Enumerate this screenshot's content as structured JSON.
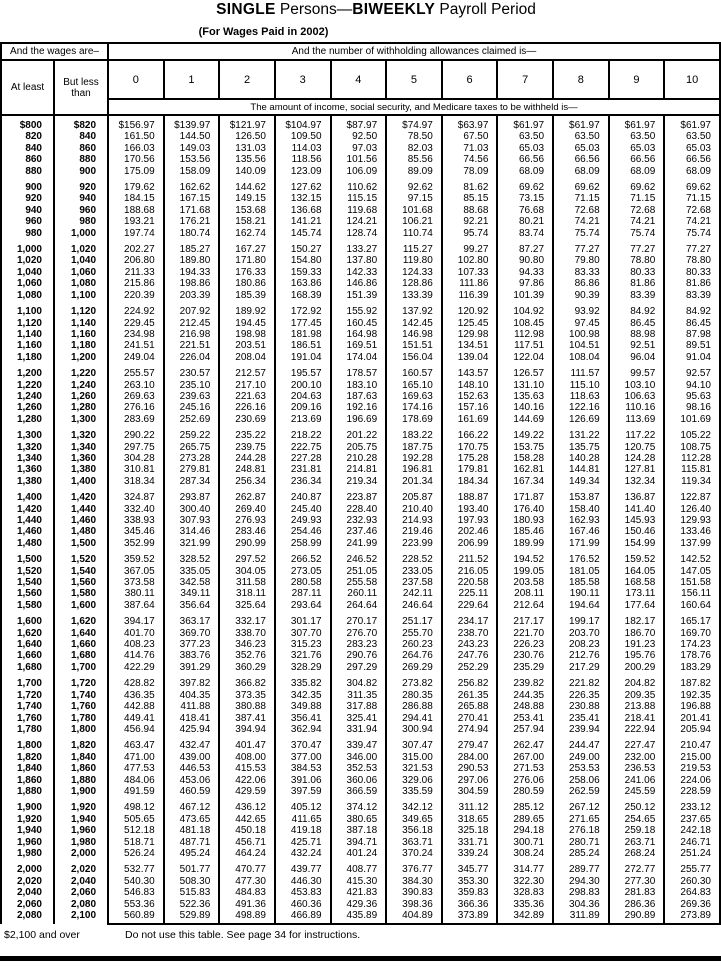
{
  "title": {
    "single": "SINGLE",
    "mid": " Persons—",
    "biweekly": "BIWEEKLY",
    "tail": " Payroll Period"
  },
  "subtitle": "(For Wages Paid in 2002)",
  "header": {
    "wages_label": "And the wages are–",
    "allowances_label": "And the number of withholding allowances claimed is—",
    "at_least": "At least",
    "but_less": "But less\nthan",
    "allowance_columns": [
      "0",
      "1",
      "2",
      "3",
      "4",
      "5",
      "6",
      "7",
      "8",
      "9",
      "10"
    ],
    "amount_label": "The amount of income, social security, and Medicare taxes to be withheld is—"
  },
  "footer": {
    "over_label": "$2,100 and over",
    "instruction": "Do not use this table. See page 34 for instructions."
  },
  "table": {
    "groups": [
      [
        [
          "$800",
          "$820",
          "$156.97",
          "$139.97",
          "$121.97",
          "$104.97",
          "$87.97",
          "$74.97",
          "$63.97",
          "$61.97",
          "$61.97",
          "$61.97",
          "$61.97"
        ],
        [
          "820",
          "840",
          "161.50",
          "144.50",
          "126.50",
          "109.50",
          "92.50",
          "78.50",
          "67.50",
          "63.50",
          "63.50",
          "63.50",
          "63.50"
        ],
        [
          "840",
          "860",
          "166.03",
          "149.03",
          "131.03",
          "114.03",
          "97.03",
          "82.03",
          "71.03",
          "65.03",
          "65.03",
          "65.03",
          "65.03"
        ],
        [
          "860",
          "880",
          "170.56",
          "153.56",
          "135.56",
          "118.56",
          "101.56",
          "85.56",
          "74.56",
          "66.56",
          "66.56",
          "66.56",
          "66.56"
        ],
        [
          "880",
          "900",
          "175.09",
          "158.09",
          "140.09",
          "123.09",
          "106.09",
          "89.09",
          "78.09",
          "68.09",
          "68.09",
          "68.09",
          "68.09"
        ]
      ],
      [
        [
          "900",
          "920",
          "179.62",
          "162.62",
          "144.62",
          "127.62",
          "110.62",
          "92.62",
          "81.62",
          "69.62",
          "69.62",
          "69.62",
          "69.62"
        ],
        [
          "920",
          "940",
          "184.15",
          "167.15",
          "149.15",
          "132.15",
          "115.15",
          "97.15",
          "85.15",
          "73.15",
          "71.15",
          "71.15",
          "71.15"
        ],
        [
          "940",
          "960",
          "188.68",
          "171.68",
          "153.68",
          "136.68",
          "119.68",
          "101.68",
          "88.68",
          "76.68",
          "72.68",
          "72.68",
          "72.68"
        ],
        [
          "960",
          "980",
          "193.21",
          "176.21",
          "158.21",
          "141.21",
          "124.21",
          "106.21",
          "92.21",
          "80.21",
          "74.21",
          "74.21",
          "74.21"
        ],
        [
          "980",
          "1,000",
          "197.74",
          "180.74",
          "162.74",
          "145.74",
          "128.74",
          "110.74",
          "95.74",
          "83.74",
          "75.74",
          "75.74",
          "75.74"
        ]
      ],
      [
        [
          "1,000",
          "1,020",
          "202.27",
          "185.27",
          "167.27",
          "150.27",
          "133.27",
          "115.27",
          "99.27",
          "87.27",
          "77.27",
          "77.27",
          "77.27"
        ],
        [
          "1,020",
          "1,040",
          "206.80",
          "189.80",
          "171.80",
          "154.80",
          "137.80",
          "119.80",
          "102.80",
          "90.80",
          "79.80",
          "78.80",
          "78.80"
        ],
        [
          "1,040",
          "1,060",
          "211.33",
          "194.33",
          "176.33",
          "159.33",
          "142.33",
          "124.33",
          "107.33",
          "94.33",
          "83.33",
          "80.33",
          "80.33"
        ],
        [
          "1,060",
          "1,080",
          "215.86",
          "198.86",
          "180.86",
          "163.86",
          "146.86",
          "128.86",
          "111.86",
          "97.86",
          "86.86",
          "81.86",
          "81.86"
        ],
        [
          "1,080",
          "1,100",
          "220.39",
          "203.39",
          "185.39",
          "168.39",
          "151.39",
          "133.39",
          "116.39",
          "101.39",
          "90.39",
          "83.39",
          "83.39"
        ]
      ],
      [
        [
          "1,100",
          "1,120",
          "224.92",
          "207.92",
          "189.92",
          "172.92",
          "155.92",
          "137.92",
          "120.92",
          "104.92",
          "93.92",
          "84.92",
          "84.92"
        ],
        [
          "1,120",
          "1,140",
          "229.45",
          "212.45",
          "194.45",
          "177.45",
          "160.45",
          "142.45",
          "125.45",
          "108.45",
          "97.45",
          "86.45",
          "86.45"
        ],
        [
          "1,140",
          "1,160",
          "234.98",
          "216.98",
          "198.98",
          "181.98",
          "164.98",
          "146.98",
          "129.98",
          "112.98",
          "100.98",
          "88.98",
          "87.98"
        ],
        [
          "1,160",
          "1,180",
          "241.51",
          "221.51",
          "203.51",
          "186.51",
          "169.51",
          "151.51",
          "134.51",
          "117.51",
          "104.51",
          "92.51",
          "89.51"
        ],
        [
          "1,180",
          "1,200",
          "249.04",
          "226.04",
          "208.04",
          "191.04",
          "174.04",
          "156.04",
          "139.04",
          "122.04",
          "108.04",
          "96.04",
          "91.04"
        ]
      ],
      [
        [
          "1,200",
          "1,220",
          "255.57",
          "230.57",
          "212.57",
          "195.57",
          "178.57",
          "160.57",
          "143.57",
          "126.57",
          "111.57",
          "99.57",
          "92.57"
        ],
        [
          "1,220",
          "1,240",
          "263.10",
          "235.10",
          "217.10",
          "200.10",
          "183.10",
          "165.10",
          "148.10",
          "131.10",
          "115.10",
          "103.10",
          "94.10"
        ],
        [
          "1,240",
          "1,260",
          "269.63",
          "239.63",
          "221.63",
          "204.63",
          "187.63",
          "169.63",
          "152.63",
          "135.63",
          "118.63",
          "106.63",
          "95.63"
        ],
        [
          "1,260",
          "1,280",
          "276.16",
          "245.16",
          "226.16",
          "209.16",
          "192.16",
          "174.16",
          "157.16",
          "140.16",
          "122.16",
          "110.16",
          "98.16"
        ],
        [
          "1,280",
          "1,300",
          "283.69",
          "252.69",
          "230.69",
          "213.69",
          "196.69",
          "178.69",
          "161.69",
          "144.69",
          "126.69",
          "113.69",
          "101.69"
        ]
      ],
      [
        [
          "1,300",
          "1,320",
          "290.22",
          "259.22",
          "235.22",
          "218.22",
          "201.22",
          "183.22",
          "166.22",
          "149.22",
          "131.22",
          "117.22",
          "105.22"
        ],
        [
          "1,320",
          "1,340",
          "297.75",
          "265.75",
          "239.75",
          "222.75",
          "205.75",
          "187.75",
          "170.75",
          "153.75",
          "135.75",
          "120.75",
          "108.75"
        ],
        [
          "1,340",
          "1,360",
          "304.28",
          "273.28",
          "244.28",
          "227.28",
          "210.28",
          "192.28",
          "175.28",
          "158.28",
          "140.28",
          "124.28",
          "112.28"
        ],
        [
          "1,360",
          "1,380",
          "310.81",
          "279.81",
          "248.81",
          "231.81",
          "214.81",
          "196.81",
          "179.81",
          "162.81",
          "144.81",
          "127.81",
          "115.81"
        ],
        [
          "1,380",
          "1,400",
          "318.34",
          "287.34",
          "256.34",
          "236.34",
          "219.34",
          "201.34",
          "184.34",
          "167.34",
          "149.34",
          "132.34",
          "119.34"
        ]
      ],
      [
        [
          "1,400",
          "1,420",
          "324.87",
          "293.87",
          "262.87",
          "240.87",
          "223.87",
          "205.87",
          "188.87",
          "171.87",
          "153.87",
          "136.87",
          "122.87"
        ],
        [
          "1,420",
          "1,440",
          "332.40",
          "300.40",
          "269.40",
          "245.40",
          "228.40",
          "210.40",
          "193.40",
          "176.40",
          "158.40",
          "141.40",
          "126.40"
        ],
        [
          "1,440",
          "1,460",
          "338.93",
          "307.93",
          "276.93",
          "249.93",
          "232.93",
          "214.93",
          "197.93",
          "180.93",
          "162.93",
          "145.93",
          "129.93"
        ],
        [
          "1,460",
          "1,480",
          "345.46",
          "314.46",
          "283.46",
          "254.46",
          "237.46",
          "219.46",
          "202.46",
          "185.46",
          "167.46",
          "150.46",
          "133.46"
        ],
        [
          "1,480",
          "1,500",
          "352.99",
          "321.99",
          "290.99",
          "258.99",
          "241.99",
          "223.99",
          "206.99",
          "189.99",
          "171.99",
          "154.99",
          "137.99"
        ]
      ],
      [
        [
          "1,500",
          "1,520",
          "359.52",
          "328.52",
          "297.52",
          "266.52",
          "246.52",
          "228.52",
          "211.52",
          "194.52",
          "176.52",
          "159.52",
          "142.52"
        ],
        [
          "1,520",
          "1,540",
          "367.05",
          "335.05",
          "304.05",
          "273.05",
          "251.05",
          "233.05",
          "216.05",
          "199.05",
          "181.05",
          "164.05",
          "147.05"
        ],
        [
          "1,540",
          "1,560",
          "373.58",
          "342.58",
          "311.58",
          "280.58",
          "255.58",
          "237.58",
          "220.58",
          "203.58",
          "185.58",
          "168.58",
          "151.58"
        ],
        [
          "1,560",
          "1,580",
          "380.11",
          "349.11",
          "318.11",
          "287.11",
          "260.11",
          "242.11",
          "225.11",
          "208.11",
          "190.11",
          "173.11",
          "156.11"
        ],
        [
          "1,580",
          "1,600",
          "387.64",
          "356.64",
          "325.64",
          "293.64",
          "264.64",
          "246.64",
          "229.64",
          "212.64",
          "194.64",
          "177.64",
          "160.64"
        ]
      ],
      [
        [
          "1,600",
          "1,620",
          "394.17",
          "363.17",
          "332.17",
          "301.17",
          "270.17",
          "251.17",
          "234.17",
          "217.17",
          "199.17",
          "182.17",
          "165.17"
        ],
        [
          "1,620",
          "1,640",
          "401.70",
          "369.70",
          "338.70",
          "307.70",
          "276.70",
          "255.70",
          "238.70",
          "221.70",
          "203.70",
          "186.70",
          "169.70"
        ],
        [
          "1,640",
          "1,660",
          "408.23",
          "377.23",
          "346.23",
          "315.23",
          "283.23",
          "260.23",
          "243.23",
          "226.23",
          "208.23",
          "191.23",
          "174.23"
        ],
        [
          "1,660",
          "1,680",
          "414.76",
          "383.76",
          "352.76",
          "321.76",
          "290.76",
          "264.76",
          "247.76",
          "230.76",
          "212.76",
          "195.76",
          "178.76"
        ],
        [
          "1,680",
          "1,700",
          "422.29",
          "391.29",
          "360.29",
          "328.29",
          "297.29",
          "269.29",
          "252.29",
          "235.29",
          "217.29",
          "200.29",
          "183.29"
        ]
      ],
      [
        [
          "1,700",
          "1,720",
          "428.82",
          "397.82",
          "366.82",
          "335.82",
          "304.82",
          "273.82",
          "256.82",
          "239.82",
          "221.82",
          "204.82",
          "187.82"
        ],
        [
          "1,720",
          "1,740",
          "436.35",
          "404.35",
          "373.35",
          "342.35",
          "311.35",
          "280.35",
          "261.35",
          "244.35",
          "226.35",
          "209.35",
          "192.35"
        ],
        [
          "1,740",
          "1,760",
          "442.88",
          "411.88",
          "380.88",
          "349.88",
          "317.88",
          "286.88",
          "265.88",
          "248.88",
          "230.88",
          "213.88",
          "196.88"
        ],
        [
          "1,760",
          "1,780",
          "449.41",
          "418.41",
          "387.41",
          "356.41",
          "325.41",
          "294.41",
          "270.41",
          "253.41",
          "235.41",
          "218.41",
          "201.41"
        ],
        [
          "1,780",
          "1,800",
          "456.94",
          "425.94",
          "394.94",
          "362.94",
          "331.94",
          "300.94",
          "274.94",
          "257.94",
          "239.94",
          "222.94",
          "205.94"
        ]
      ],
      [
        [
          "1,800",
          "1,820",
          "463.47",
          "432.47",
          "401.47",
          "370.47",
          "339.47",
          "307.47",
          "279.47",
          "262.47",
          "244.47",
          "227.47",
          "210.47"
        ],
        [
          "1,820",
          "1,840",
          "471.00",
          "439.00",
          "408.00",
          "377.00",
          "346.00",
          "315.00",
          "284.00",
          "267.00",
          "249.00",
          "232.00",
          "215.00"
        ],
        [
          "1,840",
          "1,860",
          "477.53",
          "446.53",
          "415.53",
          "384.53",
          "352.53",
          "321.53",
          "290.53",
          "271.53",
          "253.53",
          "236.53",
          "219.53"
        ],
        [
          "1,860",
          "1,880",
          "484.06",
          "453.06",
          "422.06",
          "391.06",
          "360.06",
          "329.06",
          "297.06",
          "276.06",
          "258.06",
          "241.06",
          "224.06"
        ],
        [
          "1,880",
          "1,900",
          "491.59",
          "460.59",
          "429.59",
          "397.59",
          "366.59",
          "335.59",
          "304.59",
          "280.59",
          "262.59",
          "245.59",
          "228.59"
        ]
      ],
      [
        [
          "1,900",
          "1,920",
          "498.12",
          "467.12",
          "436.12",
          "405.12",
          "374.12",
          "342.12",
          "311.12",
          "285.12",
          "267.12",
          "250.12",
          "233.12"
        ],
        [
          "1,920",
          "1,940",
          "505.65",
          "473.65",
          "442.65",
          "411.65",
          "380.65",
          "349.65",
          "318.65",
          "289.65",
          "271.65",
          "254.65",
          "237.65"
        ],
        [
          "1,940",
          "1,960",
          "512.18",
          "481.18",
          "450.18",
          "419.18",
          "387.18",
          "356.18",
          "325.18",
          "294.18",
          "276.18",
          "259.18",
          "242.18"
        ],
        [
          "1,960",
          "1,980",
          "518.71",
          "487.71",
          "456.71",
          "425.71",
          "394.71",
          "363.71",
          "331.71",
          "300.71",
          "280.71",
          "263.71",
          "246.71"
        ],
        [
          "1,980",
          "2,000",
          "526.24",
          "495.24",
          "464.24",
          "432.24",
          "401.24",
          "370.24",
          "339.24",
          "308.24",
          "285.24",
          "268.24",
          "251.24"
        ]
      ],
      [
        [
          "2,000",
          "2,020",
          "532.77",
          "501.77",
          "470.77",
          "439.77",
          "408.77",
          "376.77",
          "345.77",
          "314.77",
          "289.77",
          "272.77",
          "255.77"
        ],
        [
          "2,020",
          "2,040",
          "540.30",
          "508.30",
          "477.30",
          "446.30",
          "415.30",
          "384.30",
          "353.30",
          "322.30",
          "294.30",
          "277.30",
          "260.30"
        ],
        [
          "2,040",
          "2,060",
          "546.83",
          "515.83",
          "484.83",
          "453.83",
          "421.83",
          "390.83",
          "359.83",
          "328.83",
          "298.83",
          "281.83",
          "264.83"
        ],
        [
          "2,060",
          "2,080",
          "553.36",
          "522.36",
          "491.36",
          "460.36",
          "429.36",
          "398.36",
          "366.36",
          "335.36",
          "304.36",
          "286.36",
          "269.36"
        ],
        [
          "2,080",
          "2,100",
          "560.89",
          "529.89",
          "498.89",
          "466.89",
          "435.89",
          "404.89",
          "373.89",
          "342.89",
          "311.89",
          "290.89",
          "273.89"
        ]
      ]
    ]
  }
}
